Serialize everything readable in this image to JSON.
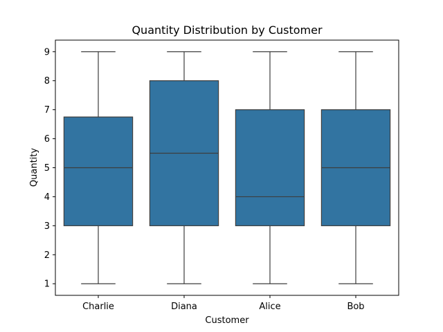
{
  "chart_data": {
    "type": "box",
    "title": "Quantity Distribution by Customer",
    "xlabel": "Customer",
    "ylabel": "Quantity",
    "categories": [
      "Charlie",
      "Diana",
      "Alice",
      "Bob"
    ],
    "boxes": [
      {
        "category": "Charlie",
        "min": 1,
        "q1": 3,
        "median": 5,
        "q3": 6.75,
        "max": 9
      },
      {
        "category": "Diana",
        "min": 1,
        "q1": 3,
        "median": 5.5,
        "q3": 8,
        "max": 9
      },
      {
        "category": "Alice",
        "min": 1,
        "q1": 3,
        "median": 4,
        "q3": 7,
        "max": 9
      },
      {
        "category": "Bob",
        "min": 1,
        "q1": 3,
        "median": 5,
        "q3": 7,
        "max": 9
      }
    ],
    "y_ticks": [
      1,
      2,
      3,
      4,
      5,
      6,
      7,
      8,
      9
    ],
    "ylim": [
      0.6,
      9.4
    ],
    "grid": false,
    "box_color": "#3274a1",
    "line_color": "#3d3d3d"
  }
}
